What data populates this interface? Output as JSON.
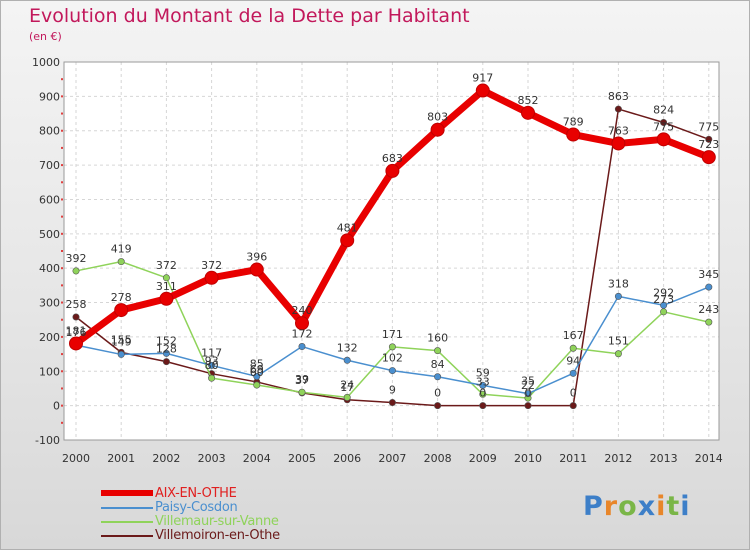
{
  "header": {
    "title": "Evolution du Montant de la Dette par Habitant",
    "subtitle": "(en €)"
  },
  "logo": {
    "letters": [
      "P",
      "r",
      "o",
      "x",
      "i",
      "t",
      "i"
    ],
    "colors": [
      "#3d7fc8",
      "#e8862a",
      "#7ab648",
      "#3d7fc8",
      "#e8862a",
      "#7ab648",
      "#3d7fc8"
    ]
  },
  "chart_data": {
    "type": "line",
    "title": "Evolution du Montant de la Dette par Habitant",
    "subtitle": "(en €)",
    "x": [
      "2000",
      "2001",
      "2002",
      "2003",
      "2004",
      "2005",
      "2006",
      "2007",
      "2008",
      "2009",
      "2010",
      "2011",
      "2012",
      "2013",
      "2014"
    ],
    "ylim": [
      -100,
      1000
    ],
    "yticks": [
      -100,
      0,
      100,
      200,
      300,
      400,
      500,
      600,
      700,
      800,
      900,
      1000
    ],
    "grid": true,
    "legend_position": "bottom-left",
    "series": [
      {
        "name": "AIX-EN-OTHE",
        "color": "#e80000",
        "values": [
          181,
          278,
          311,
          372,
          396,
          240,
          481,
          683,
          803,
          917,
          852,
          789,
          763,
          775,
          723
        ]
      },
      {
        "name": "Paisy-Cosdon",
        "color": "#4a8fcf",
        "values": [
          176,
          149,
          152,
          117,
          85,
          172,
          132,
          102,
          84,
          59,
          35,
          94,
          318,
          292,
          345
        ]
      },
      {
        "name": "Villemaur-sur-Vanne",
        "color": "#8fd35a",
        "values": [
          392,
          419,
          372,
          80,
          60,
          39,
          24,
          171,
          160,
          33,
          22,
          167,
          151,
          273,
          243
        ]
      },
      {
        "name": "Villemoiron-en-Othe",
        "color": "#6b1a1a",
        "values": [
          258,
          155,
          128,
          93,
          69,
          37,
          17,
          9,
          0,
          0,
          0,
          0,
          863,
          824,
          775
        ]
      }
    ]
  }
}
